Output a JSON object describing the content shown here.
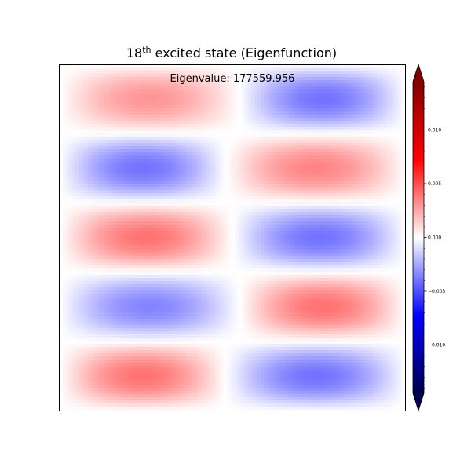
{
  "chart_data": {
    "type": "heatmap",
    "title": {
      "number": "18",
      "superscript": "th",
      "rest": " excited state (Eigenfunction)"
    },
    "annotation": "Eigenvalue: 177559.956",
    "xlabel": "",
    "ylabel": "",
    "grid": false,
    "axis_ticks": false,
    "colormap": "seismic",
    "colormap_stops": [
      "#00004c",
      "#0000ff",
      "#ffffff",
      "#ff0000",
      "#800000"
    ],
    "colorbar": {
      "ticks": [
        -0.01,
        -0.005,
        0.0,
        0.005,
        0.01
      ],
      "tick_labels": [
        "−0.010",
        "−0.005",
        "0.000",
        "0.005",
        "0.010"
      ],
      "range": [
        -0.0145,
        0.0145
      ],
      "extend": "both"
    },
    "field": {
      "rows": 5,
      "lobes": [
        [
          {
            "x0": 0.0,
            "x1": 0.52,
            "amp": 0.003
          },
          {
            "x0": 0.52,
            "x1": 1.0,
            "amp": -0.004
          }
        ],
        [
          {
            "x0": 0.0,
            "x1": 0.48,
            "amp": -0.004
          },
          {
            "x0": 0.48,
            "x1": 1.0,
            "amp": 0.0035
          }
        ],
        [
          {
            "x0": 0.0,
            "x1": 0.5,
            "amp": 0.004
          },
          {
            "x0": 0.5,
            "x1": 1.0,
            "amp": -0.004
          }
        ],
        [
          {
            "x0": 0.0,
            "x1": 0.52,
            "amp": -0.0035
          },
          {
            "x0": 0.52,
            "x1": 1.0,
            "amp": 0.004
          }
        ],
        [
          {
            "x0": 0.0,
            "x1": 0.48,
            "amp": 0.004
          },
          {
            "x0": 0.48,
            "x1": 1.0,
            "amp": -0.004
          }
        ]
      ]
    }
  }
}
